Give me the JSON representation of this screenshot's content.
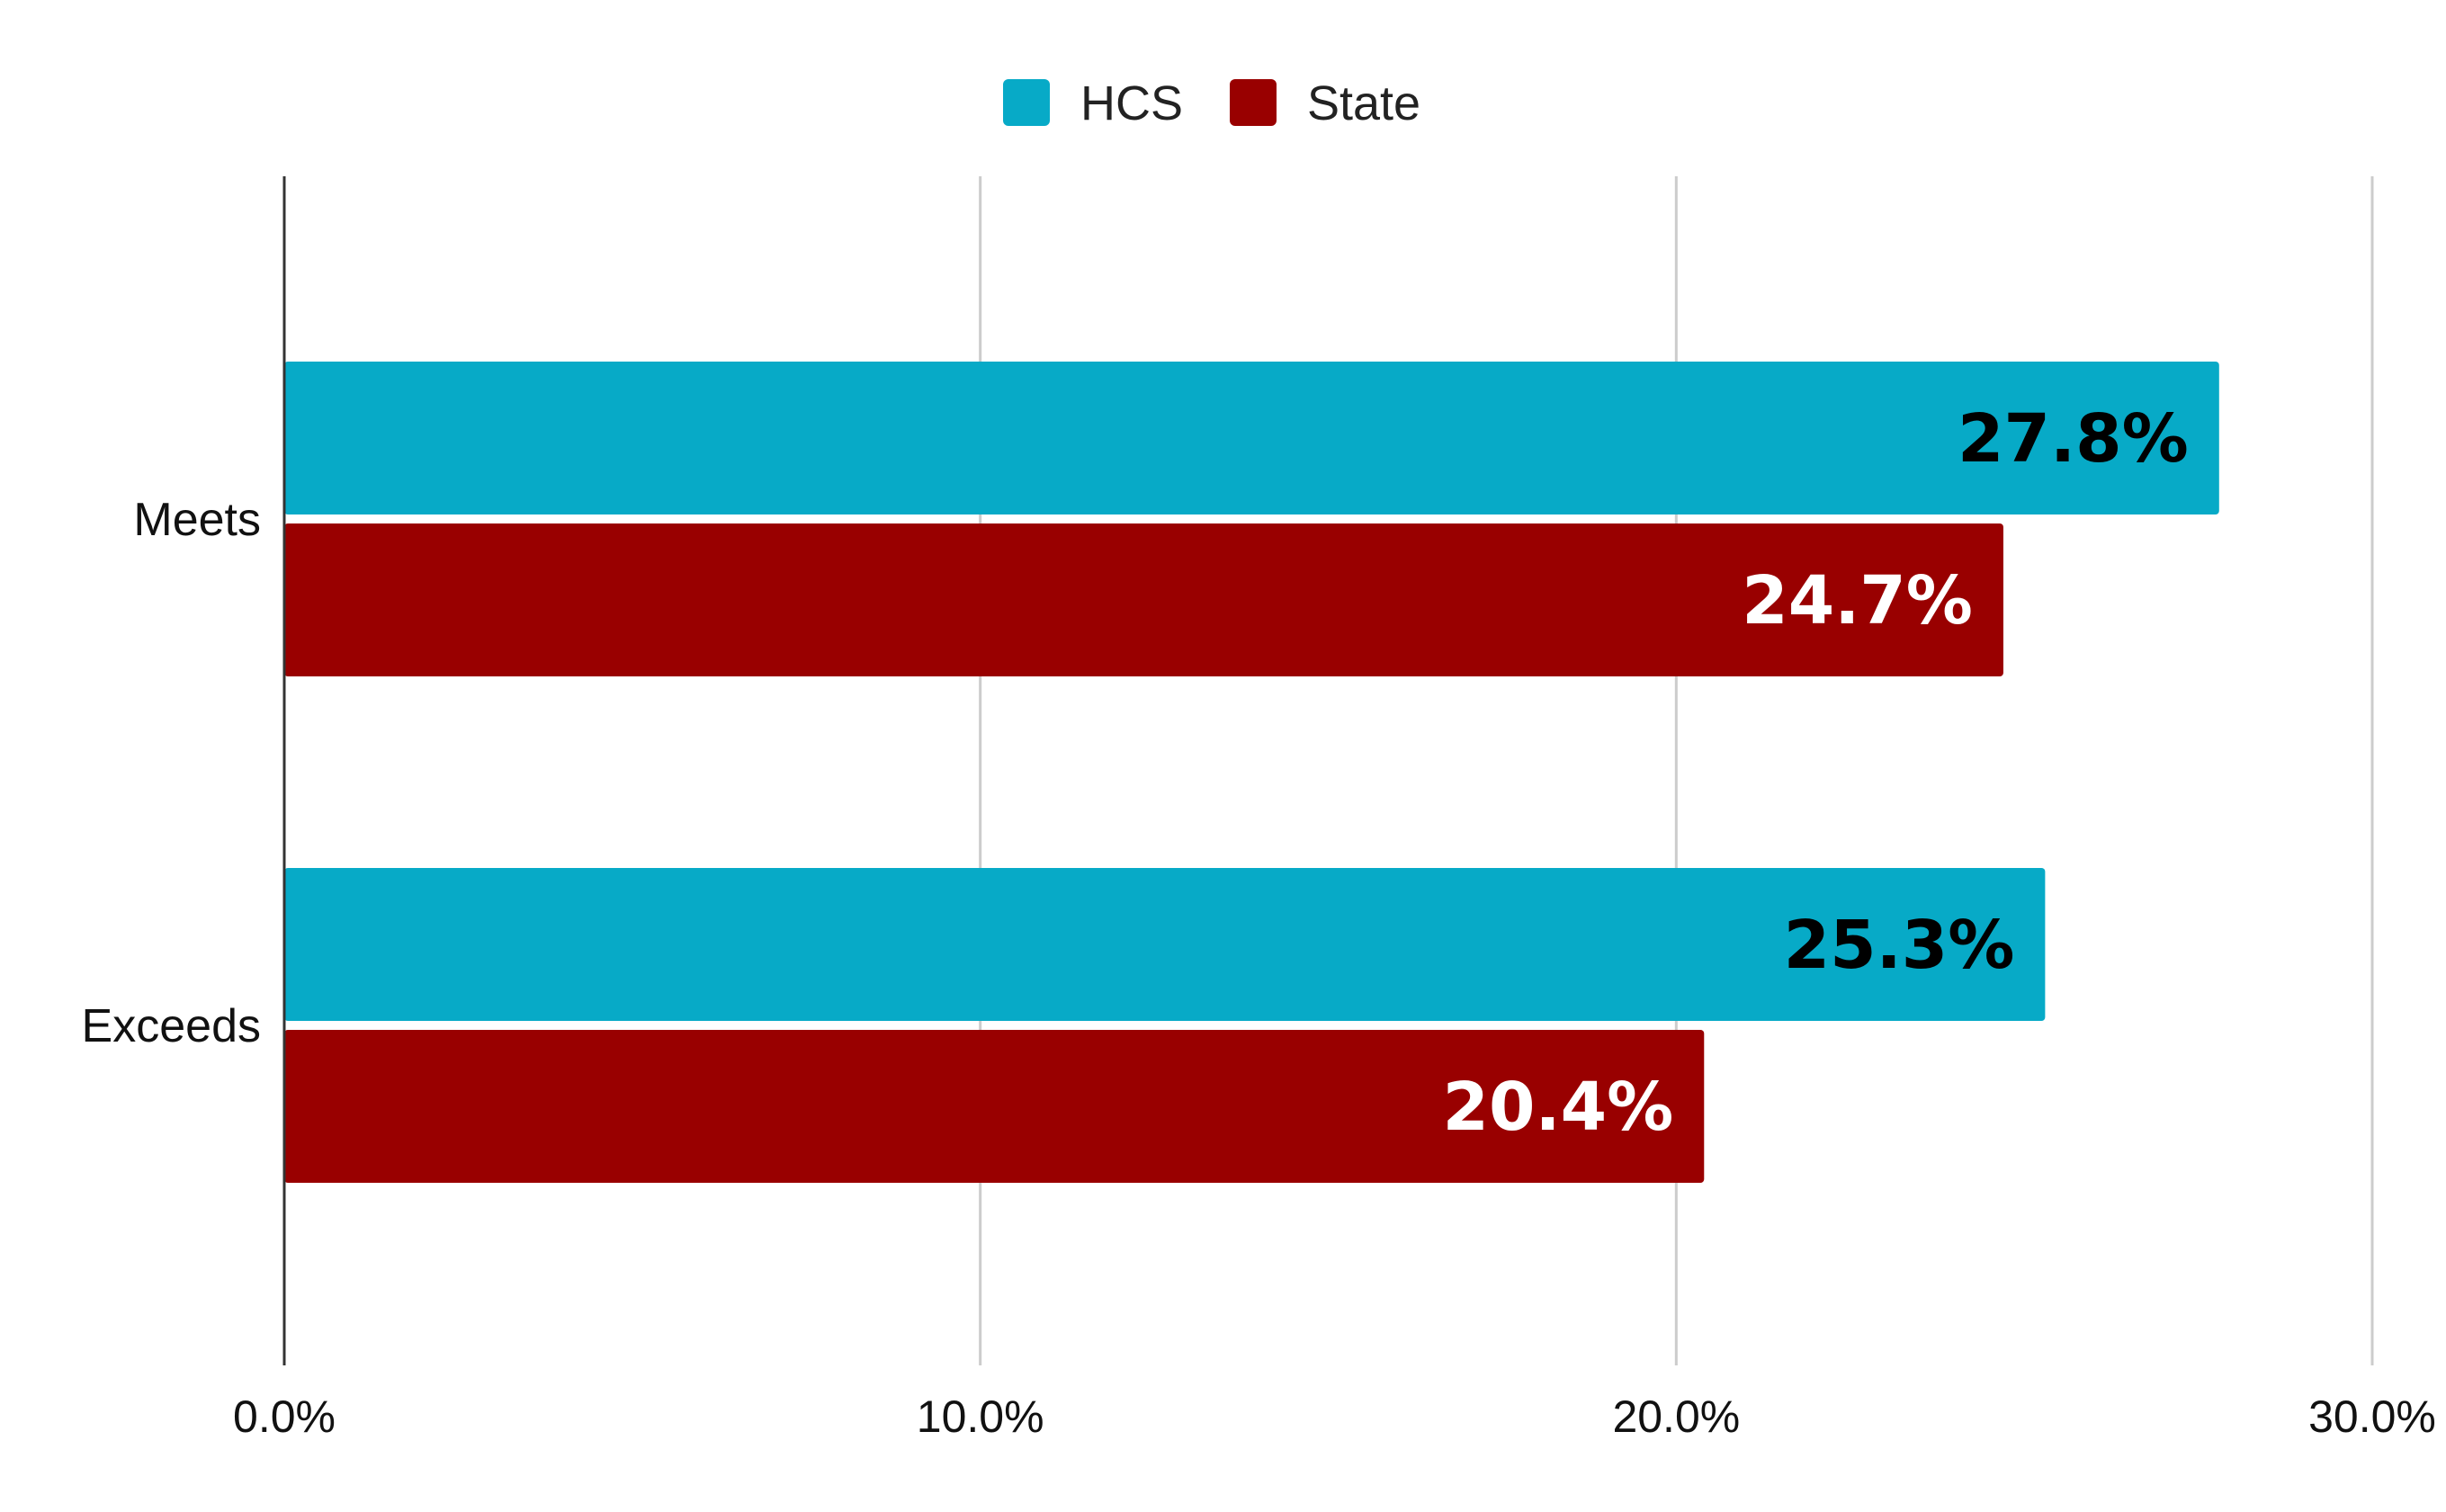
{
  "chart_data": {
    "type": "bar",
    "orientation": "horizontal",
    "categories": [
      "Meets",
      "Exceeds"
    ],
    "series": [
      {
        "name": "HCS",
        "values": [
          27.8,
          25.3
        ],
        "labels": [
          "27.8%",
          "25.3%"
        ],
        "color": "#07aac7",
        "label_color": "#000000"
      },
      {
        "name": "State",
        "values": [
          24.7,
          20.4
        ],
        "labels": [
          "24.7%",
          "20.4%"
        ],
        "color": "#990000",
        "label_color": "#ffffff"
      }
    ],
    "xlim": [
      0,
      30
    ],
    "xticks": [
      0,
      10,
      20,
      30
    ],
    "xtick_labels": [
      "0.0%",
      "10.0%",
      "20.0%",
      "30.0%"
    ],
    "grid": "vertical",
    "legend_position": "top-center",
    "title": "",
    "xlabel": "",
    "ylabel": ""
  }
}
